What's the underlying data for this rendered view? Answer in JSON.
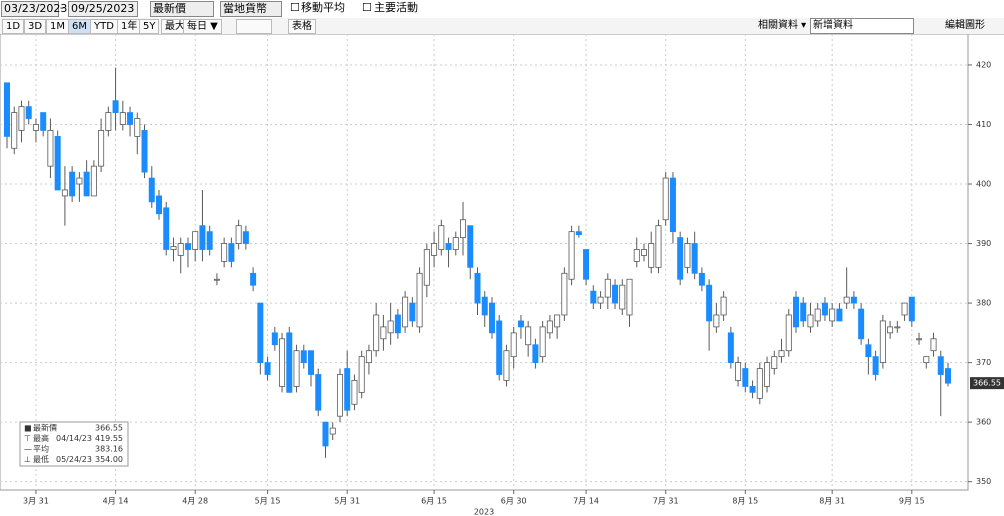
{
  "toolbar": {
    "start_date": "03/23/2023",
    "end_date": "09/25/2023",
    "price_field": "最新價",
    "currency": "當地貨幣",
    "moving_average": "移動平均",
    "key_events": "主要活動",
    "periods": [
      "1D",
      "3D",
      "1M",
      "6M",
      "YTD",
      "1年",
      "5Y",
      "最大"
    ],
    "active_period": "6M",
    "frequency": "每日 ▼",
    "table": "表格",
    "related": "相關資料 ▾",
    "add_data": "新增資料",
    "edit_chart": "編輯圖形"
  },
  "chart_data": {
    "type": "candlestick",
    "x_label": "2023",
    "up_color": "#ffffff",
    "down_color": "#1a8cff",
    "outline_color": "#5a5a5a",
    "ylim": [
      348.6,
      425.2
    ],
    "yticks": [
      350,
      360,
      370,
      380,
      390,
      400,
      410,
      420
    ],
    "grid": true,
    "categories": [
      null,
      null,
      null,
      null,
      "3月 31",
      null,
      null,
      null,
      null,
      null,
      null,
      null,
      null,
      null,
      null,
      "4月 14",
      null,
      null,
      null,
      null,
      null,
      null,
      null,
      null,
      null,
      null,
      "4月 28",
      null,
      null,
      null,
      null,
      null,
      null,
      null,
      null,
      null,
      "5月 15",
      null,
      null,
      null,
      null,
      null,
      null,
      null,
      null,
      null,
      null,
      "5月 31",
      null,
      null,
      null,
      null,
      null,
      null,
      null,
      null,
      null,
      null,
      null,
      "6月 15",
      null,
      null,
      null,
      null,
      null,
      null,
      null,
      null,
      null,
      null,
      "6月 30",
      null,
      null,
      null,
      null,
      null,
      null,
      null,
      null,
      null,
      "7月 14",
      null,
      null,
      null,
      null,
      null,
      null,
      null,
      null,
      null,
      null,
      "7月 31",
      null,
      null,
      null,
      null,
      null,
      null,
      null,
      null,
      null,
      null,
      "8月 15",
      null,
      null,
      null,
      null,
      null,
      null,
      null,
      null,
      null,
      null,
      null,
      "8月 31",
      null,
      null,
      null,
      null,
      null,
      null,
      null,
      null,
      null,
      null,
      "9月 15",
      null,
      null,
      null,
      null,
      null
    ],
    "candles": [
      [
        417,
        417,
        406,
        408
      ],
      [
        406,
        413,
        405,
        412
      ],
      [
        409,
        414,
        407,
        413
      ],
      [
        413,
        414,
        410,
        411
      ],
      [
        409,
        411,
        407,
        410
      ],
      [
        412,
        412,
        408,
        409
      ],
      [
        403,
        411,
        401,
        409
      ],
      [
        408,
        409,
        399,
        399
      ],
      [
        398,
        403,
        393,
        399
      ],
      [
        402,
        403,
        397,
        398
      ],
      [
        400,
        402,
        397,
        401
      ],
      [
        402,
        404,
        398,
        398
      ],
      [
        398,
        404,
        398,
        403
      ],
      [
        403,
        411,
        402,
        409
      ],
      [
        409,
        413,
        408,
        412
      ],
      [
        414,
        419.55,
        409,
        412
      ],
      [
        410,
        414,
        409,
        412
      ],
      [
        412,
        413,
        408,
        410
      ],
      [
        408,
        412,
        405,
        411
      ],
      [
        409,
        410,
        401,
        402
      ],
      [
        401,
        403,
        396,
        397
      ],
      [
        398,
        399,
        394,
        395
      ],
      [
        396,
        397,
        388,
        389
      ],
      [
        389,
        391,
        387,
        389.5
      ],
      [
        388,
        391,
        385,
        390
      ],
      [
        390,
        391,
        386,
        389
      ],
      [
        389,
        392,
        387,
        392
      ],
      [
        393,
        399,
        387,
        389
      ],
      [
        392,
        393,
        388,
        389
      ],
      [
        384,
        385,
        383,
        384
      ],
      [
        387,
        391,
        386,
        390
      ],
      [
        390,
        391,
        386,
        387
      ],
      [
        390,
        394,
        389,
        393
      ],
      [
        392,
        393,
        389,
        390
      ],
      [
        385,
        386,
        382,
        383
      ],
      [
        380,
        380,
        368,
        370
      ],
      [
        370,
        371,
        367,
        368
      ],
      [
        375,
        376,
        372,
        373
      ],
      [
        366,
        375,
        365,
        374
      ],
      [
        375,
        376,
        365,
        365
      ],
      [
        366,
        373,
        365,
        372
      ],
      [
        372,
        373,
        369,
        370
      ],
      [
        372,
        372,
        366,
        368
      ],
      [
        368,
        369,
        361,
        362
      ],
      [
        360,
        360,
        354,
        356
      ],
      [
        358,
        360,
        357,
        359
      ],
      [
        361,
        369,
        360,
        368
      ],
      [
        369,
        372,
        361,
        362
      ],
      [
        363,
        368,
        362,
        367
      ],
      [
        365,
        372,
        364,
        371
      ],
      [
        370,
        373,
        368,
        372
      ],
      [
        372,
        380,
        371,
        378
      ],
      [
        374,
        378,
        372,
        376
      ],
      [
        375,
        380,
        373,
        377
      ],
      [
        378,
        379,
        374,
        375
      ],
      [
        376,
        382,
        375,
        381
      ],
      [
        380,
        381,
        376,
        377
      ],
      [
        376,
        386,
        375,
        385
      ],
      [
        383,
        390,
        381,
        389
      ],
      [
        388,
        392,
        386,
        390
      ],
      [
        389,
        394,
        388,
        393
      ],
      [
        390,
        391,
        386,
        389
      ],
      [
        389,
        392,
        388,
        391
      ],
      [
        391,
        397,
        388,
        394
      ],
      [
        393,
        393,
        384,
        386
      ],
      [
        385,
        386,
        378,
        380
      ],
      [
        381,
        382,
        376,
        378
      ],
      [
        380,
        381,
        374,
        375
      ],
      [
        377,
        378,
        367,
        368
      ],
      [
        367,
        373,
        366,
        372
      ],
      [
        371,
        376,
        369,
        375
      ],
      [
        377,
        378,
        374,
        376
      ],
      [
        373,
        377,
        371,
        376
      ],
      [
        373,
        374,
        369,
        370
      ],
      [
        371,
        377,
        370,
        376
      ],
      [
        375,
        378,
        374,
        377
      ],
      [
        376,
        378,
        374,
        378
      ],
      [
        378,
        386,
        377,
        385
      ],
      [
        384,
        393,
        383,
        392
      ],
      [
        392,
        393,
        391,
        391.5
      ],
      [
        389,
        389,
        383,
        384
      ],
      [
        382,
        383,
        379,
        380
      ],
      [
        380,
        382,
        379,
        381
      ],
      [
        381,
        385,
        379,
        384
      ],
      [
        383,
        384,
        379,
        380
      ],
      [
        379,
        384,
        378,
        383
      ],
      [
        378,
        384,
        376,
        384
      ],
      [
        387,
        391,
        386,
        389
      ],
      [
        388,
        390,
        387,
        389
      ],
      [
        386,
        392,
        385,
        390
      ],
      [
        386,
        394,
        385,
        393
      ],
      [
        394,
        402,
        393,
        401
      ],
      [
        401,
        402,
        390,
        392
      ],
      [
        391,
        392,
        383,
        384
      ],
      [
        386,
        391,
        385,
        390
      ],
      [
        390,
        392,
        384,
        385
      ],
      [
        385,
        386,
        382,
        383
      ],
      [
        383,
        384,
        372,
        377
      ],
      [
        376,
        380,
        375,
        378
      ],
      [
        378,
        382,
        377,
        381
      ],
      [
        375,
        376,
        369,
        370
      ],
      [
        367,
        371,
        366,
        370
      ],
      [
        369,
        370,
        365,
        366
      ],
      [
        366,
        367,
        364,
        365
      ],
      [
        364,
        370,
        363,
        369
      ],
      [
        366,
        371,
        365,
        370
      ],
      [
        369,
        372,
        368,
        371
      ],
      [
        371,
        374,
        370,
        372
      ],
      [
        372,
        379,
        371,
        378
      ],
      [
        381,
        382,
        375,
        376
      ],
      [
        380,
        381,
        376,
        377
      ],
      [
        376,
        380,
        375,
        378
      ],
      [
        377,
        380,
        376,
        379
      ],
      [
        380,
        381,
        377,
        378
      ],
      [
        377,
        380,
        376,
        379
      ],
      [
        379,
        380,
        377,
        377
      ],
      [
        380,
        386,
        379,
        381
      ],
      [
        381,
        382,
        379,
        380
      ],
      [
        379,
        380,
        373,
        374
      ],
      [
        373,
        374,
        368,
        371
      ],
      [
        371,
        372,
        367,
        368
      ],
      [
        370,
        378,
        369,
        377
      ],
      [
        375,
        377,
        374,
        376
      ],
      [
        376,
        377,
        375,
        376
      ],
      [
        378,
        380,
        377,
        380
      ],
      [
        381,
        381,
        376,
        377
      ],
      [
        374,
        375,
        373,
        374
      ],
      [
        370,
        371,
        369,
        371
      ],
      [
        372,
        375,
        371,
        374
      ],
      [
        371,
        372,
        361,
        368
      ],
      [
        369,
        370,
        366,
        366.55
      ]
    ],
    "last_value": 366.55,
    "stats": [
      {
        "label": "最新價",
        "value": 366.55
      },
      {
        "label": "最高",
        "date": "04/14/23",
        "value": 419.55
      },
      {
        "label": "平均",
        "value": 383.16
      },
      {
        "label": "最低",
        "date": "05/24/23",
        "value": 354,
        "value_label": "354.00"
      }
    ]
  }
}
